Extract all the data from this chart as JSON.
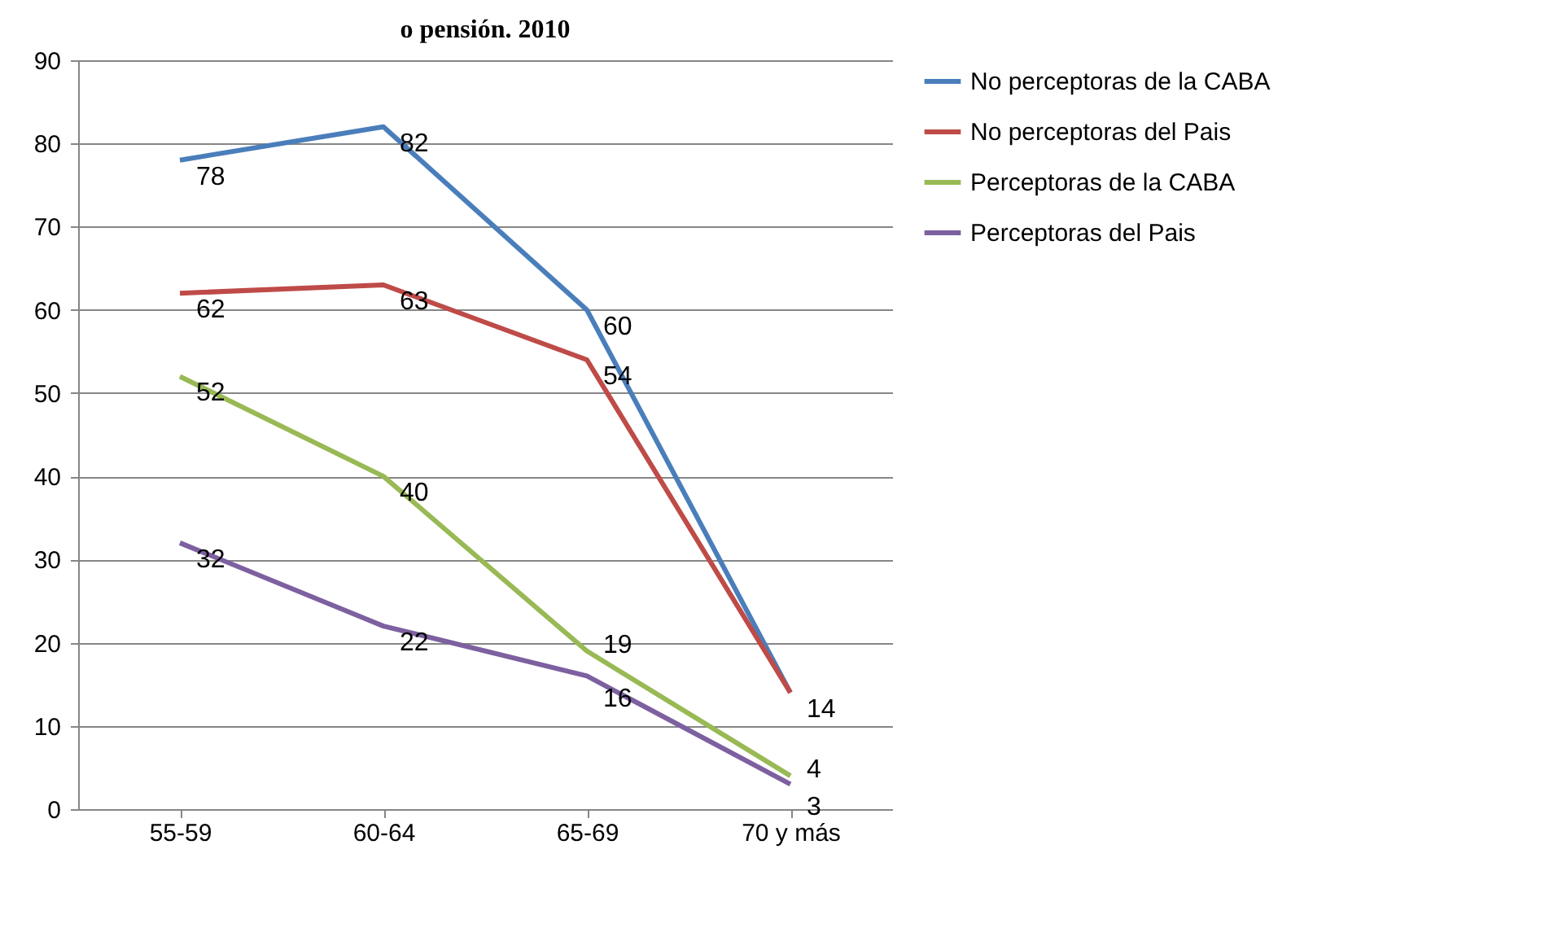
{
  "chart_data": {
    "type": "line",
    "title": "o pensión. 2010",
    "categories": [
      "55-59",
      "60-64",
      "65-69",
      "70 y más"
    ],
    "series": [
      {
        "name": "No perceptoras de la CABA",
        "color": "#4a7ebb",
        "values": [
          78,
          82,
          60,
          14
        ],
        "value_labels": [
          "78",
          "82",
          "60",
          null
        ]
      },
      {
        "name": "No perceptoras del Pais",
        "color": "#be4b48",
        "values": [
          62,
          63,
          54,
          14
        ],
        "value_labels": [
          "62",
          "63",
          "54",
          "14"
        ]
      },
      {
        "name": "Perceptoras de la CABA",
        "color": "#98b954",
        "values": [
          52,
          40,
          19,
          4
        ],
        "value_labels": [
          "52",
          "40",
          "19",
          "4"
        ]
      },
      {
        "name": "Perceptoras del Pais",
        "color": "#7d60a0",
        "values": [
          32,
          22,
          16,
          3
        ],
        "value_labels": [
          "32",
          "22",
          "16",
          "3"
        ]
      }
    ],
    "ylim": [
      0,
      90
    ],
    "yticks": [
      0,
      10,
      20,
      30,
      40,
      50,
      60,
      70,
      80,
      90
    ],
    "grid": "y",
    "legend": "right",
    "marker": "none",
    "line_style": "solid"
  }
}
